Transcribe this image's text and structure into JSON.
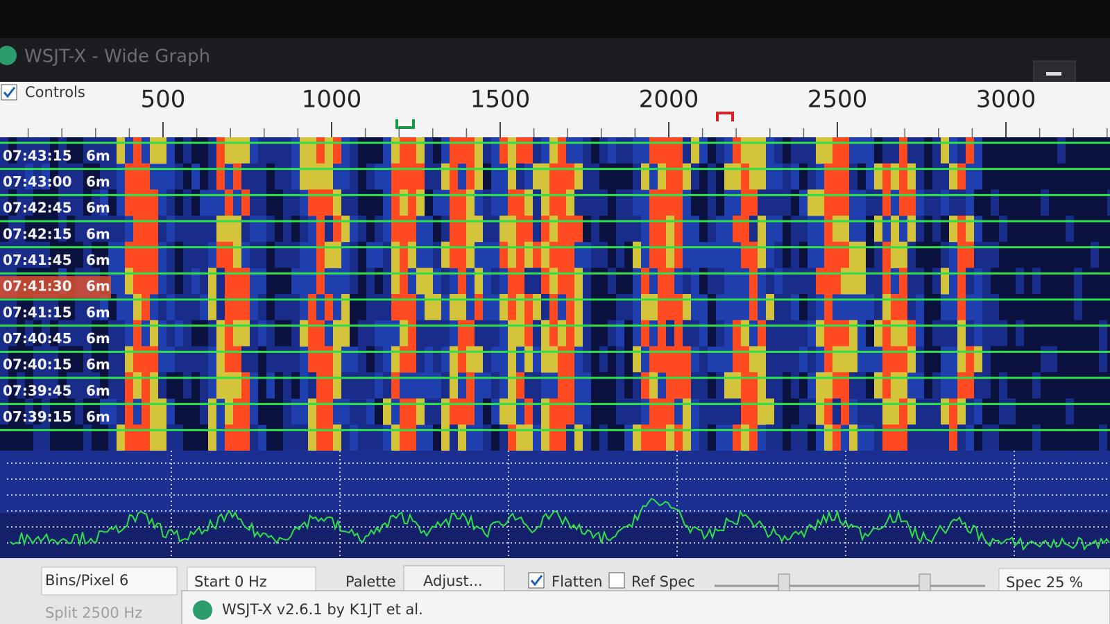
{
  "window": {
    "title": "WSJT-X - Wide Graph"
  },
  "controls": "Controls",
  "frequency_labels": [
    500,
    1000,
    1500,
    2000,
    2500,
    3000
  ],
  "waterfall": {
    "rows": [
      {
        "time": "07:43:15",
        "band": "6m"
      },
      {
        "time": "07:43:00",
        "band": "6m"
      },
      {
        "time": "07:42:45",
        "band": "6m"
      },
      {
        "time": "07:42:15",
        "band": "6m"
      },
      {
        "time": "07:41:45",
        "band": "6m"
      },
      {
        "time": "07:41:30",
        "band": "6m"
      },
      {
        "time": "07:41:15",
        "band": "6m"
      },
      {
        "time": "07:40:45",
        "band": "6m"
      },
      {
        "time": "07:40:15",
        "band": "6m"
      },
      {
        "time": "07:39:45",
        "band": "6m"
      },
      {
        "time": "07:39:15",
        "band": "6m"
      }
    ]
  },
  "bottom_bar": {
    "bins_label": "Bins/Pixel",
    "bins_value": "6",
    "start": "Start 0 Hz",
    "palette": "Palette",
    "adjust": "Adjust...",
    "flatten": "Flatten",
    "ref_spec": "Ref Spec",
    "spec": "Spec 25 %",
    "split": "Split 2500 Hz"
  },
  "main_window": "WSJT-X   v2.6.1   by K1JT et al."
}
